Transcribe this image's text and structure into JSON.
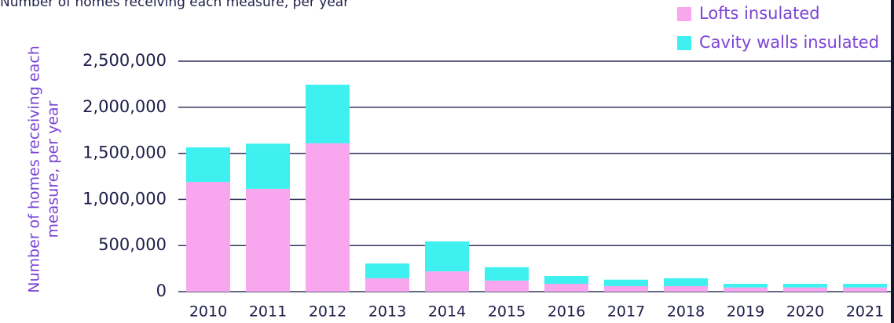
{
  "chart_data": {
    "type": "stacked_bar",
    "title": "Number of homes receiving each measure, per year",
    "ylabel": [
      "Number of homes receiving each",
      "measure, per year"
    ],
    "categories": [
      "2010",
      "2011",
      "2012",
      "2013",
      "2014",
      "2015",
      "2016",
      "2017",
      "2018",
      "2019",
      "2020",
      "2021"
    ],
    "series": [
      {
        "name": "Lofts insulated",
        "color": "#f8a6ee",
        "values": [
          1190000,
          1115000,
          1610000,
          145000,
          220000,
          120000,
          85000,
          60000,
          60000,
          45000,
          45000,
          45000
        ]
      },
      {
        "name": "Cavity walls insulated",
        "color": "#3ef0f0",
        "values": [
          375000,
          490000,
          635000,
          160000,
          325000,
          145000,
          85000,
          70000,
          85000,
          40000,
          40000,
          40000
        ]
      }
    ],
    "ylim": [
      0,
      2500000
    ],
    "yticks": [
      0,
      {
        "value": 500000,
        "label": "500,000"
      },
      {
        "value": 1000000,
        "label": "1,000,000"
      },
      {
        "value": 1500000,
        "label": "1,500,000"
      },
      {
        "value": 2000000,
        "label": "2,000,000"
      },
      {
        "value": 2500000,
        "label": "2,500,000"
      }
    ],
    "grid": true,
    "legend": "top-right"
  }
}
